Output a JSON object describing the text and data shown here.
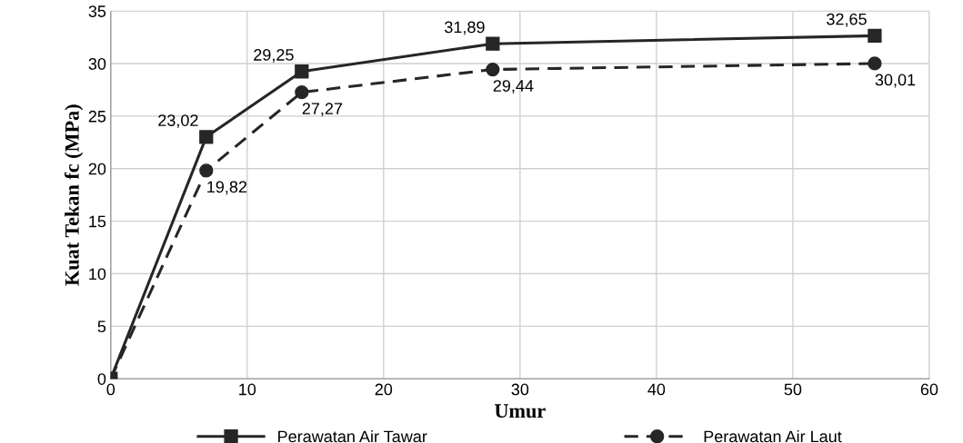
{
  "chart_data": {
    "type": "line",
    "xlabel": "Umur",
    "ylabel": "Kuat Tekan fc (MPa)",
    "xlim": [
      0,
      60
    ],
    "xticks": [
      0,
      10,
      20,
      30,
      40,
      50,
      60
    ],
    "ylim": [
      0,
      35
    ],
    "yticks": [
      0,
      5,
      10,
      15,
      20,
      25,
      30,
      35
    ],
    "grid": true,
    "legend": "bottom",
    "series": [
      {
        "name": "Perawatan Air Tawar",
        "color": "#262626",
        "x": [
          0,
          7,
          14,
          28,
          56
        ],
        "values": [
          0,
          23.02,
          29.25,
          31.89,
          32.65
        ],
        "marker": "square",
        "line_style": "solid",
        "value_labels": [
          null,
          "23,02",
          "29,25",
          "31,89",
          "32,65"
        ]
      },
      {
        "name": "Perawatan Air Laut",
        "color": "#262626",
        "x": [
          0,
          7,
          14,
          28,
          56
        ],
        "values": [
          0,
          19.82,
          27.27,
          29.44,
          30.01
        ],
        "marker": "circle",
        "line_style": "dashed",
        "value_labels": [
          null,
          "19,82",
          "27,27",
          "29,44",
          "30,01"
        ]
      }
    ]
  }
}
